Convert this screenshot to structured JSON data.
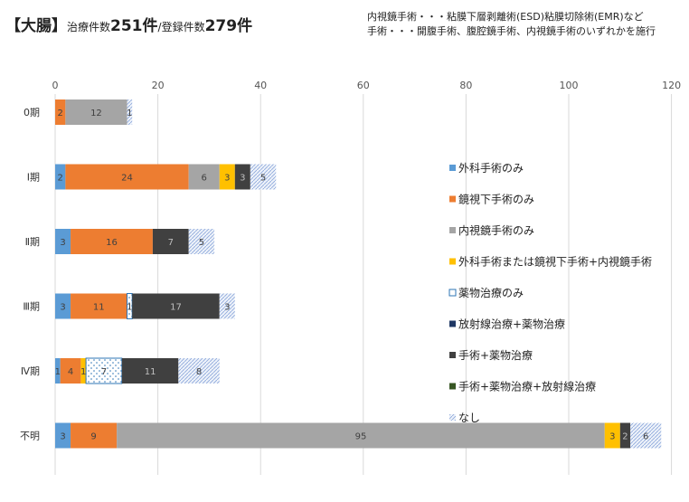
{
  "header": {
    "title_bracket": "【大腸】",
    "title_t1": "治療件数",
    "title_n1": "251件",
    "title_sep": "/",
    "title_t2": "登録件数",
    "title_n2": "279件",
    "note1": "内視鏡手術・・・粘膜下層剥離術(ESD)粘膜切除術(EMR)など",
    "note2": "手術・・・開腹手術、腹腔鏡手術、内視鏡手術のいずれかを施行"
  },
  "chart_data": {
    "type": "bar",
    "orientation": "horizontal",
    "stacked": true,
    "categories": [
      "0期",
      "Ⅰ期",
      "Ⅱ期",
      "Ⅲ期",
      "Ⅳ期",
      "不明"
    ],
    "xlim": [
      0,
      120
    ],
    "xticks": [
      0,
      20,
      40,
      60,
      80,
      100,
      120
    ],
    "grid": true,
    "legend_position": "right",
    "series": [
      {
        "name": "外科手術のみ",
        "color": "#5b9bd5",
        "pattern": "solid",
        "values": [
          0,
          2,
          3,
          3,
          1,
          3
        ]
      },
      {
        "name": "鏡視下手術のみ",
        "color": "#ed7d31",
        "pattern": "solid",
        "values": [
          2,
          24,
          16,
          11,
          4,
          9
        ]
      },
      {
        "name": "内視鏡手術のみ",
        "color": "#a5a5a5",
        "pattern": "solid",
        "values": [
          12,
          6,
          0,
          0,
          0,
          95
        ]
      },
      {
        "name": "外科手術または鏡視下手術+内視鏡手術",
        "color": "#ffc000",
        "pattern": "solid",
        "values": [
          0,
          3,
          0,
          0,
          1,
          3
        ]
      },
      {
        "name": "薬物治療のみ",
        "color": "#2e75b6",
        "pattern": "dotted",
        "values": [
          0,
          0,
          0,
          1,
          7,
          0
        ]
      },
      {
        "name": "放射線治療+薬物治療",
        "color": "#1f3864",
        "pattern": "solid",
        "values": [
          0,
          0,
          0,
          0,
          0,
          0
        ]
      },
      {
        "name": "手術+薬物治療",
        "color": "#404040",
        "pattern": "solid",
        "values": [
          0,
          3,
          7,
          17,
          11,
          2
        ]
      },
      {
        "name": "手術+薬物治療+放射線治療",
        "color": "#375623",
        "pattern": "solid",
        "values": [
          0,
          0,
          0,
          0,
          0,
          0
        ]
      },
      {
        "name": "なし",
        "color": "#8faadc",
        "pattern": "hatch",
        "values": [
          1,
          5,
          5,
          3,
          8,
          6
        ]
      }
    ]
  }
}
